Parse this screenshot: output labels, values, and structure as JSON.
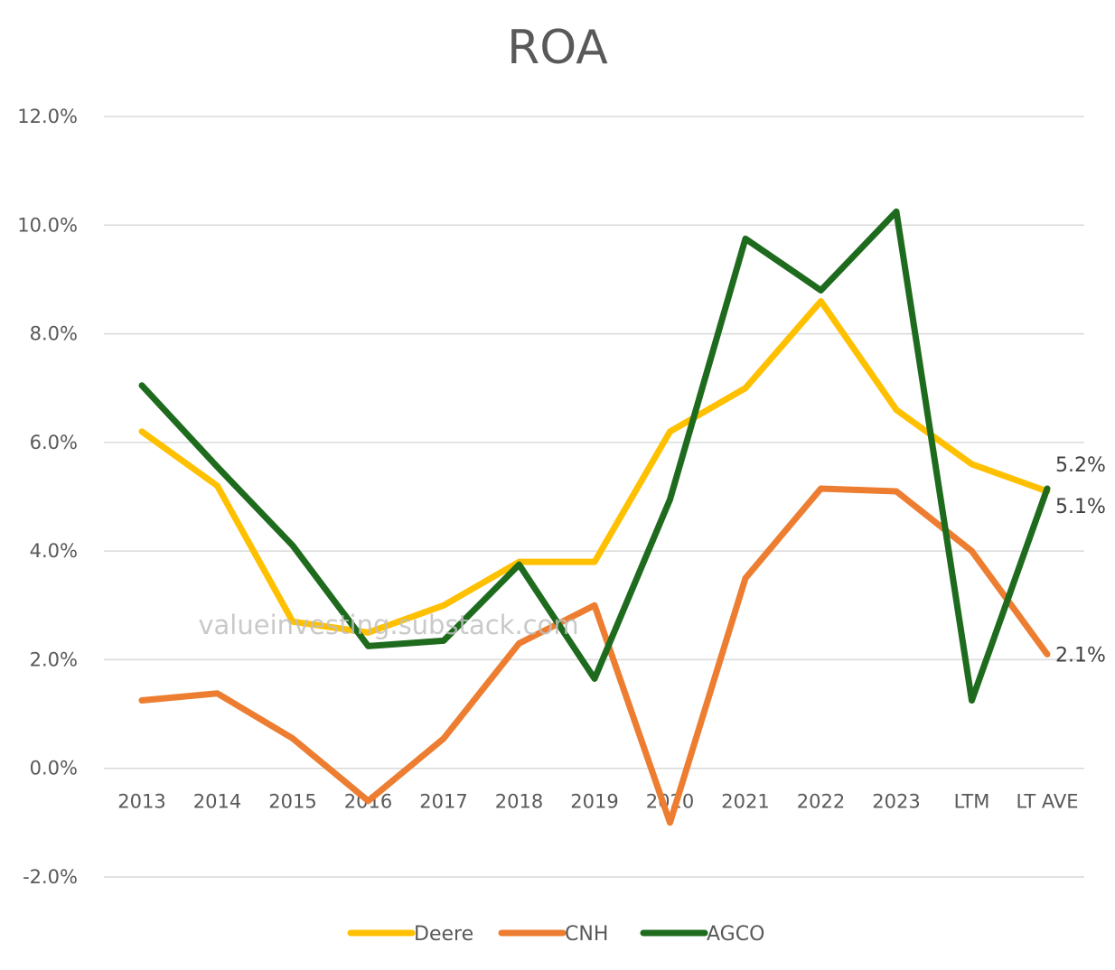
{
  "chart_data": {
    "type": "line",
    "title": "ROA",
    "xlabel": "",
    "ylabel": "",
    "categories": [
      "2013",
      "2014",
      "2015",
      "2016",
      "2017",
      "2018",
      "2019",
      "2020",
      "2021",
      "2022",
      "2023",
      "LTM",
      "LT AVE"
    ],
    "y_ticks": [
      "12.0%",
      "10.0%",
      "8.0%",
      "6.0%",
      "4.0%",
      "2.0%",
      "0.0%",
      "-2.0%"
    ],
    "ylim": [
      -2.0,
      12.0
    ],
    "grid": true,
    "legend_position": "bottom",
    "series": [
      {
        "name": "Deere",
        "color": "#FFC000",
        "values": [
          6.2,
          5.2,
          2.7,
          2.5,
          3.0,
          3.8,
          3.8,
          6.2,
          7.0,
          8.6,
          6.6,
          5.6,
          5.1
        ]
      },
      {
        "name": "CNH",
        "color": "#ED7D31",
        "values": [
          1.25,
          1.38,
          0.55,
          -0.6,
          0.55,
          2.3,
          3.0,
          -1.0,
          3.5,
          5.15,
          5.1,
          4.0,
          2.1
        ]
      },
      {
        "name": "AGCO",
        "color": "#1E6B1E",
        "values": [
          7.05,
          5.55,
          4.1,
          2.25,
          2.35,
          3.75,
          1.65,
          4.95,
          9.75,
          8.8,
          10.25,
          1.25,
          5.15
        ]
      }
    ],
    "end_labels": [
      "5.2%",
      "5.1%",
      "2.1%"
    ]
  },
  "watermark": "valueinvesting.substack.com"
}
